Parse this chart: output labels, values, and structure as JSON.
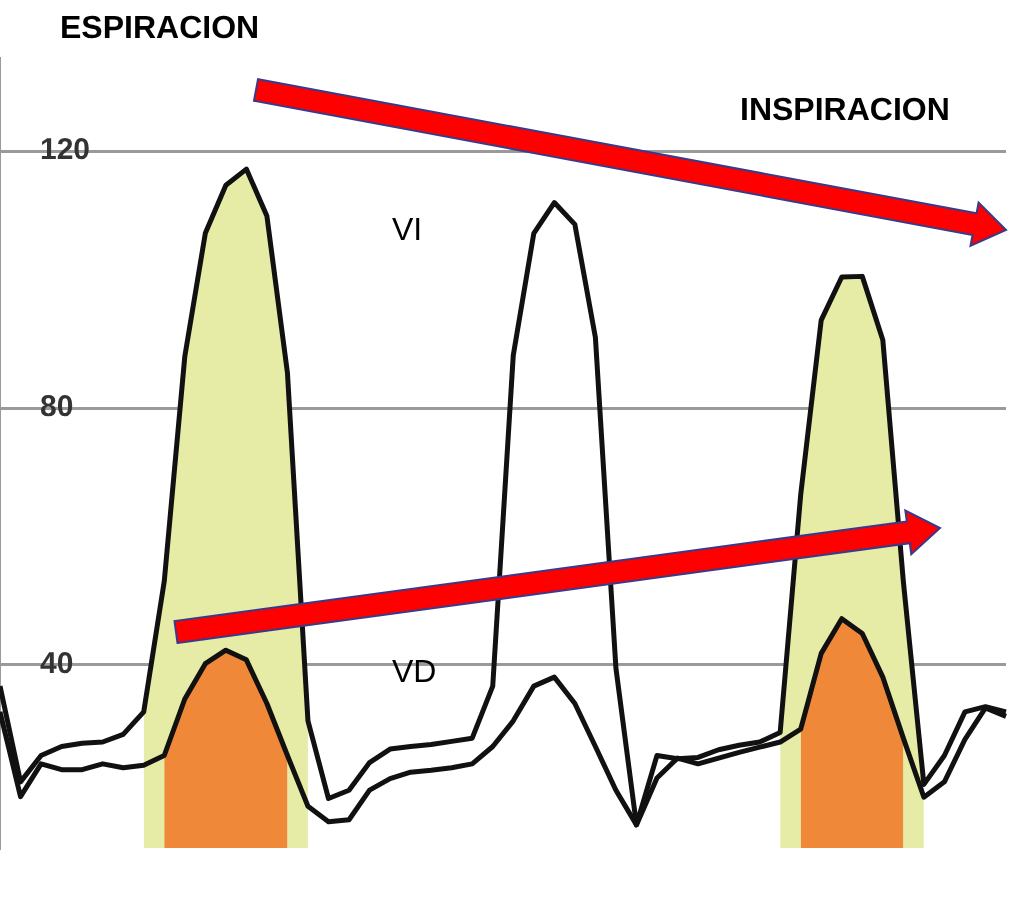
{
  "chart_data": {
    "type": "line",
    "categories": [
      null,
      null,
      null,
      null,
      null,
      null,
      null,
      null,
      null,
      null,
      null,
      null,
      null,
      null,
      null,
      null,
      null,
      null,
      null,
      null,
      null,
      null,
      null,
      null,
      null,
      null,
      null,
      null,
      null,
      null,
      null,
      null,
      null,
      null,
      null,
      null,
      null,
      null,
      null,
      null,
      null,
      null,
      null,
      null,
      null,
      null,
      null,
      null,
      null,
      null
    ],
    "ylim": [
      11.5,
      134.5
    ],
    "yticks": [
      40,
      80,
      120
    ],
    "grid": "y",
    "tick_labels": "y",
    "marker": "none",
    "line_style": "solid",
    "annotations": [
      "ESPIRACION",
      "INSPIRACION",
      "VI",
      "VD"
    ],
    "series": [
      {
        "type": "area",
        "color": "#e6eba6",
        "values": [
          null,
          null,
          null,
          null,
          null,
          null,
          null,
          32.7,
          53,
          88,
          107.2,
          114.7,
          117.2,
          109.9,
          85.5,
          31.3,
          null,
          null,
          null,
          null,
          null,
          null,
          null,
          null,
          null,
          null,
          null,
          null,
          null,
          null,
          null,
          null,
          null,
          null,
          null,
          null,
          null,
          null,
          29.5,
          66.5,
          93.7,
          100.4,
          100.5,
          90.6,
          53,
          21.4,
          null,
          null,
          null,
          null
        ]
      },
      {
        "type": "area",
        "color": "#f0883a",
        "values": [
          null,
          null,
          null,
          null,
          null,
          null,
          null,
          null,
          25.9,
          34.7,
          40.2,
          42.3,
          40.8,
          34,
          25.9,
          null,
          null,
          null,
          null,
          null,
          null,
          null,
          null,
          null,
          null,
          null,
          null,
          null,
          null,
          null,
          null,
          null,
          null,
          null,
          null,
          null,
          null,
          null,
          null,
          30,
          41.8,
          47.2,
          44.9,
          38.1,
          28.6,
          null,
          null,
          null,
          null,
          null
        ]
      },
      {
        "type": "line",
        "color": "#111111",
        "values": [
          36.7,
          21.8,
          25.9,
          27.3,
          27.8,
          28,
          29.2,
          32.7,
          53,
          88,
          107.2,
          114.7,
          117.2,
          109.9,
          85.5,
          31.3,
          19.2,
          20.5,
          24.8,
          26.9,
          27.3,
          27.6,
          28.1,
          28.6,
          36.7,
          88.2,
          107.2,
          112,
          108.6,
          91,
          39.5,
          15.1,
          25.9,
          25.4,
          25.6,
          26.8,
          27.5,
          28,
          29.5,
          66.5,
          93.7,
          100.4,
          100.5,
          90.6,
          53,
          21.4,
          25.9,
          32.7,
          33.5,
          32.7
        ]
      },
      {
        "type": "line",
        "color": "#111111",
        "values": [
          32.7,
          19.5,
          24.6,
          23.7,
          23.7,
          24.6,
          24,
          24.4,
          25.9,
          34.7,
          40.2,
          42.3,
          40.8,
          34,
          25.9,
          18,
          15.6,
          15.9,
          20.5,
          22.3,
          23.3,
          23.6,
          24,
          24.6,
          27.3,
          31.3,
          36.7,
          38.1,
          34,
          27.3,
          20.5,
          15.1,
          22.4,
          25.5,
          24.6,
          25.5,
          26.4,
          27.2,
          28,
          30,
          41.8,
          47.2,
          44.9,
          38.1,
          28.6,
          19.4,
          21.8,
          28.4,
          33.3,
          32
        ]
      }
    ]
  }
}
